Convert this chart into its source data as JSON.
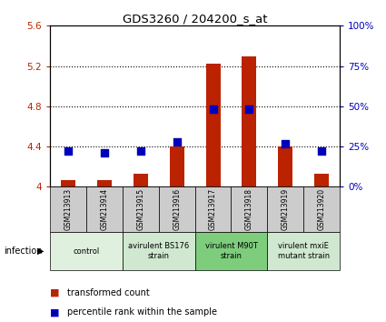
{
  "title": "GDS3260 / 204200_s_at",
  "samples": [
    "GSM213913",
    "GSM213914",
    "GSM213915",
    "GSM213916",
    "GSM213917",
    "GSM213918",
    "GSM213919",
    "GSM213920"
  ],
  "transformed_count": [
    4.07,
    4.07,
    4.13,
    4.4,
    5.22,
    5.3,
    4.4,
    4.13
  ],
  "percentile_rank": [
    22,
    21,
    22,
    28,
    48,
    48,
    27,
    22
  ],
  "ylim_left": [
    4.0,
    5.6
  ],
  "ylim_right": [
    0,
    100
  ],
  "yticks_left": [
    4.0,
    4.4,
    4.8,
    5.2,
    5.6
  ],
  "yticks_right": [
    0,
    25,
    50,
    75,
    100
  ],
  "ytick_labels_left": [
    "4",
    "4.4",
    "4.8",
    "5.2",
    "5.6"
  ],
  "ytick_labels_right": [
    "0%",
    "25%",
    "50%",
    "75%",
    "100%"
  ],
  "group_boundaries": [
    {
      "start": 0,
      "end": 2,
      "label": "control",
      "color": "#dff0df"
    },
    {
      "start": 2,
      "end": 4,
      "label": "avirulent BS176\nstrain",
      "color": "#d0e8d0"
    },
    {
      "start": 4,
      "end": 6,
      "label": "virulent M90T\nstrain",
      "color": "#7dcd7d"
    },
    {
      "start": 6,
      "end": 8,
      "label": "virulent mxiE\nmutant strain",
      "color": "#d0e8d0"
    }
  ],
  "bar_color": "#bb2200",
  "dot_color": "#0000bb",
  "bar_width": 0.4,
  "dot_size": 30,
  "infection_label": "infection",
  "legend": [
    {
      "color": "#bb2200",
      "label": "transformed count"
    },
    {
      "color": "#0000bb",
      "label": "percentile rank within the sample"
    }
  ],
  "sample_box_color": "#cccccc",
  "grid_ticks": [
    4.4,
    4.8,
    5.2
  ]
}
